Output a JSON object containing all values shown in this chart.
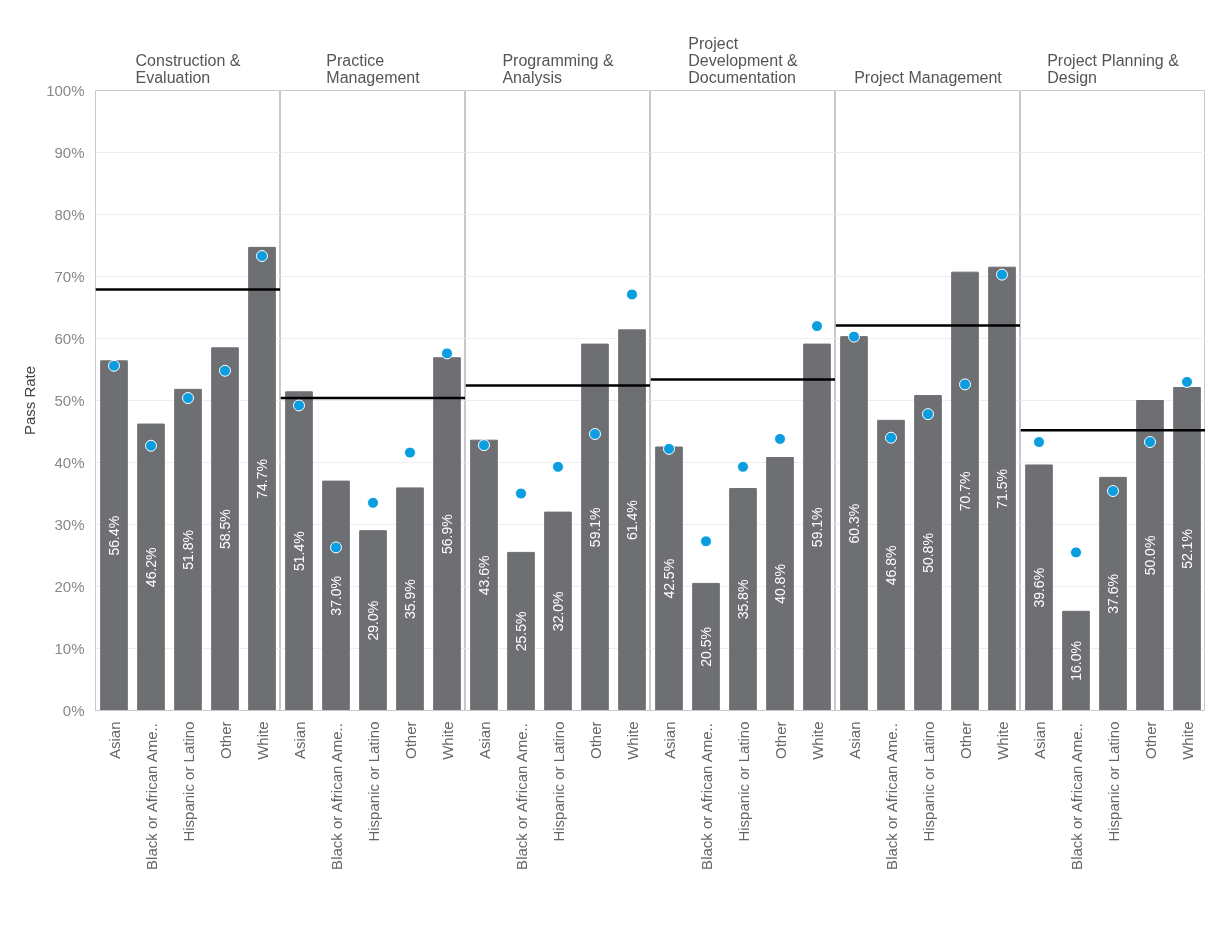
{
  "chart_data": [
    {
      "type": "bar",
      "title": "Construction & Evaluation",
      "ylabel": "Pass Rate",
      "categories": [
        "Asian",
        "Black or African Ame..",
        "Hispanic or Latino",
        "Other",
        "White"
      ],
      "series": [
        {
          "color": "#6e6f73",
          "values": [
            56.4,
            46.2,
            51.8,
            58.5,
            74.7
          ],
          "value_labels": [
            "56.4%",
            "46.2%",
            "51.8%",
            "58.5%",
            "74.7%"
          ]
        },
        {
          "type": "scatter",
          "color": "#0a9de0",
          "values": [
            55.6,
            42.7,
            50.4,
            54.8,
            73.3
          ]
        }
      ],
      "marker": "circle",
      "ref_lines": [
        {
          "axis": "y",
          "value": 67.9,
          "color": "#000000"
        }
      ],
      "grid": "y",
      "ylim": [
        0,
        100
      ],
      "yticks": [
        {
          "value": 0,
          "label": "0%"
        },
        {
          "value": 10,
          "label": "10%"
        },
        {
          "value": 20,
          "label": "20%"
        },
        {
          "value": 30,
          "label": "30%"
        },
        {
          "value": 40,
          "label": "40%"
        },
        {
          "value": 50,
          "label": "50%"
        },
        {
          "value": 60,
          "label": "60%"
        },
        {
          "value": 70,
          "label": "70%"
        },
        {
          "value": 80,
          "label": "80%"
        },
        {
          "value": 90,
          "label": "90%"
        },
        {
          "value": 100,
          "label": "100%"
        }
      ]
    },
    {
      "type": "bar",
      "title": "Practice Management",
      "categories": [
        "Asian",
        "Black or African Ame..",
        "Hispanic or Latino",
        "Other",
        "White"
      ],
      "series": [
        {
          "color": "#6e6f73",
          "values": [
            51.4,
            37.0,
            29.0,
            35.9,
            56.9
          ],
          "value_labels": [
            "51.4%",
            "37.0%",
            "29.0%",
            "35.9%",
            "56.9%"
          ]
        },
        {
          "type": "scatter",
          "color": "#0a9de0",
          "values": [
            49.2,
            26.3,
            33.5,
            41.6,
            57.6
          ]
        }
      ],
      "marker": "circle",
      "ref_lines": [
        {
          "axis": "y",
          "value": 50.4,
          "color": "#000000"
        }
      ],
      "grid": "y",
      "tick_labels": "x",
      "ylim": [
        0,
        100
      ],
      "yticks": [
        {
          "value": 0,
          "label": null
        },
        {
          "value": 10,
          "label": null
        },
        {
          "value": 20,
          "label": null
        },
        {
          "value": 30,
          "label": null
        },
        {
          "value": 40,
          "label": null
        },
        {
          "value": 50,
          "label": null
        },
        {
          "value": 60,
          "label": null
        },
        {
          "value": 70,
          "label": null
        },
        {
          "value": 80,
          "label": null
        },
        {
          "value": 90,
          "label": null
        },
        {
          "value": 100,
          "label": null
        }
      ]
    },
    {
      "type": "bar",
      "title": "Programming & Analysis",
      "categories": [
        "Asian",
        "Black or African Ame..",
        "Hispanic or Latino",
        "Other",
        "White"
      ],
      "series": [
        {
          "color": "#6e6f73",
          "values": [
            43.6,
            25.5,
            32.0,
            59.1,
            61.4
          ],
          "value_labels": [
            "43.6%",
            "25.5%",
            "32.0%",
            "59.1%",
            "61.4%"
          ]
        },
        {
          "type": "scatter",
          "color": "#0a9de0",
          "values": [
            42.8,
            35.0,
            39.3,
            44.6,
            67.1
          ]
        }
      ],
      "marker": "circle",
      "ref_lines": [
        {
          "axis": "y",
          "value": 52.4,
          "color": "#000000"
        }
      ],
      "grid": "y",
      "tick_labels": "x",
      "ylim": [
        0,
        100
      ],
      "yticks": [
        {
          "value": 0,
          "label": null
        },
        {
          "value": 10,
          "label": null
        },
        {
          "value": 20,
          "label": null
        },
        {
          "value": 30,
          "label": null
        },
        {
          "value": 40,
          "label": null
        },
        {
          "value": 50,
          "label": null
        },
        {
          "value": 60,
          "label": null
        },
        {
          "value": 70,
          "label": null
        },
        {
          "value": 80,
          "label": null
        },
        {
          "value": 90,
          "label": null
        },
        {
          "value": 100,
          "label": null
        }
      ]
    },
    {
      "type": "bar",
      "title": "Project Development & Documentation",
      "categories": [
        "Asian",
        "Black or African Ame..",
        "Hispanic or Latino",
        "Other",
        "White"
      ],
      "series": [
        {
          "color": "#6e6f73",
          "values": [
            42.5,
            20.5,
            35.8,
            40.8,
            59.1
          ],
          "value_labels": [
            "42.5%",
            "20.5%",
            "35.8%",
            "40.8%",
            "59.1%"
          ]
        },
        {
          "type": "scatter",
          "color": "#0a9de0",
          "values": [
            42.2,
            27.3,
            39.3,
            43.8,
            62.0
          ]
        }
      ],
      "marker": "circle",
      "ref_lines": [
        {
          "axis": "y",
          "value": 53.4,
          "color": "#000000"
        }
      ],
      "grid": "y",
      "tick_labels": "x",
      "ylim": [
        0,
        100
      ],
      "yticks": [
        {
          "value": 0,
          "label": null
        },
        {
          "value": 10,
          "label": null
        },
        {
          "value": 20,
          "label": null
        },
        {
          "value": 30,
          "label": null
        },
        {
          "value": 40,
          "label": null
        },
        {
          "value": 50,
          "label": null
        },
        {
          "value": 60,
          "label": null
        },
        {
          "value": 70,
          "label": null
        },
        {
          "value": 80,
          "label": null
        },
        {
          "value": 90,
          "label": null
        },
        {
          "value": 100,
          "label": null
        }
      ]
    },
    {
      "type": "bar",
      "title": "Project Management",
      "categories": [
        "Asian",
        "Black or African Ame..",
        "Hispanic or Latino",
        "Other",
        "White"
      ],
      "series": [
        {
          "color": "#6e6f73",
          "values": [
            60.3,
            46.8,
            50.8,
            70.7,
            71.5
          ],
          "value_labels": [
            "60.3%",
            "46.8%",
            "50.8%",
            "70.7%",
            "71.5%"
          ]
        },
        {
          "type": "scatter",
          "color": "#0a9de0",
          "values": [
            60.3,
            44.0,
            47.8,
            52.6,
            70.3
          ]
        }
      ],
      "marker": "circle",
      "ref_lines": [
        {
          "axis": "y",
          "value": 62.1,
          "color": "#000000"
        }
      ],
      "grid": "y",
      "tick_labels": "x",
      "ylim": [
        0,
        100
      ],
      "yticks": [
        {
          "value": 0,
          "label": null
        },
        {
          "value": 10,
          "label": null
        },
        {
          "value": 20,
          "label": null
        },
        {
          "value": 30,
          "label": null
        },
        {
          "value": 40,
          "label": null
        },
        {
          "value": 50,
          "label": null
        },
        {
          "value": 60,
          "label": null
        },
        {
          "value": 70,
          "label": null
        },
        {
          "value": 80,
          "label": null
        },
        {
          "value": 90,
          "label": null
        },
        {
          "value": 100,
          "label": null
        }
      ]
    },
    {
      "type": "bar",
      "title": "Project Planning & Design",
      "categories": [
        "Asian",
        "Black or African Ame..",
        "Hispanic or Latino",
        "Other",
        "White"
      ],
      "series": [
        {
          "color": "#6e6f73",
          "values": [
            39.6,
            16.0,
            37.6,
            50.0,
            52.1
          ],
          "value_labels": [
            "39.6%",
            "16.0%",
            "37.6%",
            "50.0%",
            "52.1%"
          ]
        },
        {
          "type": "scatter",
          "color": "#0a9de0",
          "values": [
            43.3,
            25.5,
            35.4,
            43.3,
            53.0
          ]
        }
      ],
      "marker": "circle",
      "ref_lines": [
        {
          "axis": "y",
          "value": 45.2,
          "color": "#000000"
        }
      ],
      "grid": "y",
      "tick_labels": "x",
      "ylim": [
        0,
        100
      ],
      "yticks": [
        {
          "value": 0,
          "label": null
        },
        {
          "value": 10,
          "label": null
        },
        {
          "value": 20,
          "label": null
        },
        {
          "value": 30,
          "label": null
        },
        {
          "value": 40,
          "label": null
        },
        {
          "value": 50,
          "label": null
        },
        {
          "value": 60,
          "label": null
        },
        {
          "value": 70,
          "label": null
        },
        {
          "value": 80,
          "label": null
        },
        {
          "value": 90,
          "label": null
        },
        {
          "value": 100,
          "label": null
        }
      ]
    }
  ]
}
